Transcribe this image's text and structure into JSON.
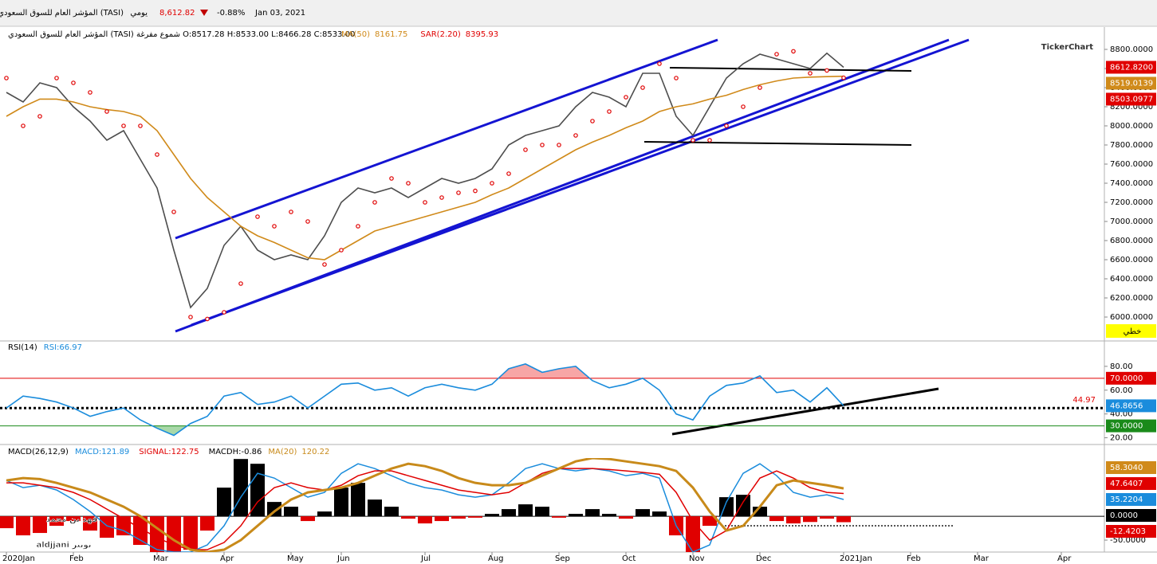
{
  "header": {
    "title": "المؤشر العام للسوق السعودي (TASI)",
    "period": "يومي",
    "price": "8,612.82",
    "change": "-0.88%",
    "date": "Jan 03, 2021",
    "logo": "TickerChart",
    "watermark_name": "فهد بن محمد",
    "watermark_handle": "aldjjani تويتر"
  },
  "chart_data": [
    {
      "type": "line",
      "info": "المؤشر العام للسوق السعودي (TASI) شموع مفرغة O:8517.28 H:8533.00 L:8466.28 C:8533.00",
      "ylim": [
        5750,
        9000
      ],
      "yticks": [
        {
          "value": 8800,
          "label": "8800.0000"
        },
        {
          "value": 8600,
          "label": "8600.0000"
        },
        {
          "value": 8400,
          "label": "8400.0000"
        },
        {
          "value": 8200,
          "label": "8200.0000"
        },
        {
          "value": 8000,
          "label": "8000.0000"
        },
        {
          "value": 7800,
          "label": "7800.0000"
        },
        {
          "value": 7600,
          "label": "7600.0000"
        },
        {
          "value": 7400,
          "label": "7400.0000"
        },
        {
          "value": 7200,
          "label": "7200.0000"
        },
        {
          "value": 7000,
          "label": "7000.0000"
        },
        {
          "value": 6800,
          "label": "6800.0000"
        },
        {
          "value": 6600,
          "label": "6600.0000"
        },
        {
          "value": 6400,
          "label": "6400.0000"
        },
        {
          "value": 6200,
          "label": "6200.0000"
        },
        {
          "value": 6000,
          "label": "6000.0000"
        }
      ],
      "series": [
        {
          "color": "#4d4d4d",
          "values": [
            8350,
            8250,
            8450,
            8400,
            8200,
            8050,
            7850,
            7950,
            7650,
            7350,
            6700,
            6100,
            6300,
            6750,
            6950,
            6700,
            6600,
            6650,
            6600,
            6850,
            7200,
            7350,
            7300,
            7350,
            7250,
            7350,
            7450,
            7400,
            7450,
            7550,
            7800,
            7900,
            7950,
            8000,
            8200,
            8350,
            8300,
            8200,
            8550,
            8550,
            8100,
            7900,
            8200,
            8500,
            8650,
            8750,
            8700,
            8650,
            8600,
            8760,
            8612.82,
            null,
            null,
            null,
            null,
            null,
            null,
            null,
            null,
            null,
            null,
            null,
            null,
            null,
            null,
            null
          ]
        },
        {
          "name": "MA(50)",
          "legend_value": "8161.75",
          "color": "#d08a1a",
          "values": [
            8100,
            8200,
            8280,
            8280,
            8250,
            8200,
            8170,
            8150,
            8100,
            7950,
            7700,
            7450,
            7250,
            7100,
            6950,
            6850,
            6780,
            6700,
            6620,
            6600,
            6700,
            6800,
            6900,
            6950,
            7000,
            7050,
            7100,
            7150,
            7200,
            7280,
            7350,
            7450,
            7550,
            7650,
            7750,
            7830,
            7900,
            7980,
            8050,
            8150,
            8200,
            8230,
            8280,
            8320,
            8380,
            8430,
            8470,
            8500,
            8510,
            8515,
            8519.0139,
            null,
            null,
            null,
            null,
            null,
            null,
            null,
            null,
            null,
            null,
            null,
            null,
            null,
            null,
            null
          ]
        },
        {
          "name": "SAR(2.20)",
          "legend_value": "8395.93",
          "color": "#e00000",
          "style": "dots",
          "values": [
            8500,
            8000,
            8100,
            8500,
            8450,
            8350,
            8150,
            8000,
            8000,
            7700,
            7100,
            6000,
            5980,
            6050,
            6350,
            7050,
            6950,
            7100,
            7000,
            6550,
            6700,
            6950,
            7200,
            7450,
            7400,
            7200,
            7250,
            7300,
            7320,
            7400,
            7500,
            7750,
            7800,
            7800,
            7900,
            8050,
            8150,
            8300,
            8400,
            8650,
            8500,
            7850,
            7850,
            8000,
            8200,
            8400,
            8750,
            8780,
            8550,
            8580,
            8503.0977,
            null,
            null,
            null,
            null,
            null,
            null,
            null,
            null,
            null,
            null,
            null,
            null,
            null,
            null,
            null
          ]
        }
      ],
      "price_labels": [
        {
          "value": 8612.82,
          "label": "8612.8200",
          "color": "#e00000"
        },
        {
          "value": 8519.0139,
          "label": "8519.0139",
          "color": "#d08a1a"
        },
        {
          "value": 8503.0977,
          "label": "8503.0977",
          "color": "#e00000"
        }
      ],
      "style_label": "خطي"
    },
    {
      "type": "line",
      "title": "RSI(14)",
      "ylim": [
        15,
        100
      ],
      "yticks": [
        {
          "value": 80,
          "label": "80.00"
        },
        {
          "value": 60,
          "label": "60.00"
        },
        {
          "value": 40,
          "label": "40.00"
        },
        {
          "value": 20,
          "label": "20.00"
        }
      ],
      "series": [
        {
          "name": "RSI:66.97",
          "color": "#1a8cdc",
          "values": [
            45,
            55,
            53,
            50,
            45,
            38,
            42,
            45,
            35,
            28,
            22,
            32,
            38,
            55,
            58,
            48,
            50,
            55,
            45,
            55,
            65,
            66,
            60,
            62,
            55,
            62,
            65,
            62,
            60,
            65,
            78,
            82,
            75,
            78,
            80,
            68,
            62,
            65,
            70,
            60,
            40,
            35,
            55,
            64,
            66,
            72,
            58,
            60,
            50,
            62,
            46.8656,
            null,
            null,
            null,
            null,
            null,
            null,
            null,
            null,
            null,
            null,
            null,
            null,
            null,
            null,
            null
          ]
        }
      ],
      "levels": [
        {
          "value": 70,
          "label": "70.0000",
          "color": "#e00000",
          "fill": "#f7a6a6"
        },
        {
          "value": 30,
          "label": "30.0000",
          "color": "#1a8a1a",
          "fill": "#a8d8a8"
        }
      ],
      "last_label": {
        "value": 46.8656,
        "label": "46.8656",
        "color": "#1a8cdc"
      },
      "support": {
        "value": 44.97,
        "label": "44.97"
      }
    },
    {
      "type": "macd",
      "title": "MACD(26,12,9)",
      "ylim": [
        -75,
        122
      ],
      "categories": [
        "2020Jan",
        null,
        null,
        null,
        "Feb",
        null,
        null,
        null,
        null,
        "Mar",
        null,
        null,
        null,
        "Apr",
        null,
        null,
        null,
        "May",
        null,
        null,
        "Jun",
        null,
        null,
        null,
        null,
        "Jul",
        null,
        null,
        null,
        "Aug",
        null,
        null,
        null,
        "Sep",
        null,
        null,
        null,
        "Oct",
        null,
        null,
        null,
        "Nov",
        null,
        null,
        null,
        "Dec",
        null,
        null,
        null,
        null,
        "2021Jan",
        null,
        null,
        null,
        "Feb",
        null,
        null,
        null,
        "Mar",
        null,
        null,
        null,
        null,
        "Apr",
        null,
        null
      ],
      "yticks": [
        {
          "value": -50,
          "label": "-50.0000"
        }
      ],
      "histogram": {
        "name": "MACDH:-0.86",
        "pos_color": "#000000",
        "neg_color": "#e00000",
        "values": [
          -25,
          -40,
          -35,
          -20,
          -10,
          -30,
          -45,
          -40,
          -60,
          -75,
          -75,
          -70,
          -30,
          60,
          120,
          110,
          30,
          20,
          -10,
          10,
          60,
          70,
          35,
          20,
          -5,
          -15,
          -10,
          -5,
          -3,
          5,
          15,
          25,
          20,
          -3,
          5,
          15,
          5,
          -5,
          15,
          10,
          -40,
          -75,
          -20,
          40,
          45,
          20,
          -10,
          -15,
          -12,
          -5,
          -12.4203,
          null,
          null,
          null,
          null,
          null,
          null,
          null,
          null,
          null,
          null,
          null,
          null,
          null,
          null,
          null
        ]
      },
      "series": [
        {
          "name": "MACD:121.89",
          "color": "#1a8cdc",
          "width": 1.5,
          "values": [
            75,
            60,
            65,
            55,
            35,
            10,
            -20,
            -30,
            -50,
            -70,
            -75,
            -75,
            -60,
            -20,
            40,
            90,
            80,
            60,
            40,
            50,
            90,
            110,
            100,
            85,
            70,
            60,
            55,
            45,
            40,
            45,
            70,
            100,
            110,
            100,
            95,
            100,
            95,
            85,
            90,
            80,
            -20,
            -75,
            -60,
            30,
            90,
            110,
            85,
            50,
            40,
            45,
            35.2204,
            null,
            null,
            null,
            null,
            null,
            null,
            null,
            null,
            null,
            null,
            null,
            null,
            null,
            null,
            null
          ]
        },
        {
          "name": "SIGNAL:122.75",
          "color": "#e00000",
          "width": 1.5,
          "values": [
            70,
            70,
            65,
            60,
            50,
            35,
            15,
            -5,
            -25,
            -45,
            -60,
            -70,
            -70,
            -55,
            -20,
            30,
            60,
            70,
            60,
            55,
            65,
            85,
            95,
            95,
            85,
            75,
            65,
            55,
            50,
            45,
            50,
            70,
            90,
            100,
            100,
            100,
            98,
            95,
            92,
            88,
            50,
            -10,
            -50,
            -30,
            30,
            80,
            95,
            80,
            60,
            50,
            47.6407,
            null,
            null,
            null,
            null,
            null,
            null,
            null,
            null,
            null,
            null,
            null,
            null,
            null,
            null,
            null
          ]
        },
        {
          "name": "MA(20)",
          "legend_value": "120.22",
          "color": "#c88a1a",
          "width": 3,
          "values": [
            75,
            80,
            78,
            70,
            60,
            50,
            35,
            20,
            0,
            -25,
            -50,
            -70,
            -75,
            -70,
            -50,
            -20,
            10,
            35,
            50,
            55,
            60,
            70,
            85,
            100,
            110,
            105,
            95,
            80,
            70,
            65,
            65,
            70,
            85,
            100,
            115,
            122,
            120,
            115,
            110,
            105,
            95,
            60,
            10,
            -30,
            -20,
            20,
            65,
            75,
            70,
            65,
            58.304,
            null,
            null,
            null,
            null,
            null,
            null,
            null,
            null,
            null,
            null,
            null,
            null,
            null,
            null,
            null
          ]
        }
      ],
      "last_labels": [
        {
          "value": 58.304,
          "label": "58.3040",
          "color": "#d08a1a"
        },
        {
          "value": 47.6407,
          "label": "47.6407",
          "color": "#e00000"
        },
        {
          "value": 35.2204,
          "label": "35.2204",
          "color": "#1a8cdc"
        },
        {
          "value": 0,
          "label": "0.0000",
          "color": "#000000"
        },
        {
          "value": -12.4203,
          "label": "-12.4203",
          "color": "#e00000"
        }
      ]
    }
  ]
}
